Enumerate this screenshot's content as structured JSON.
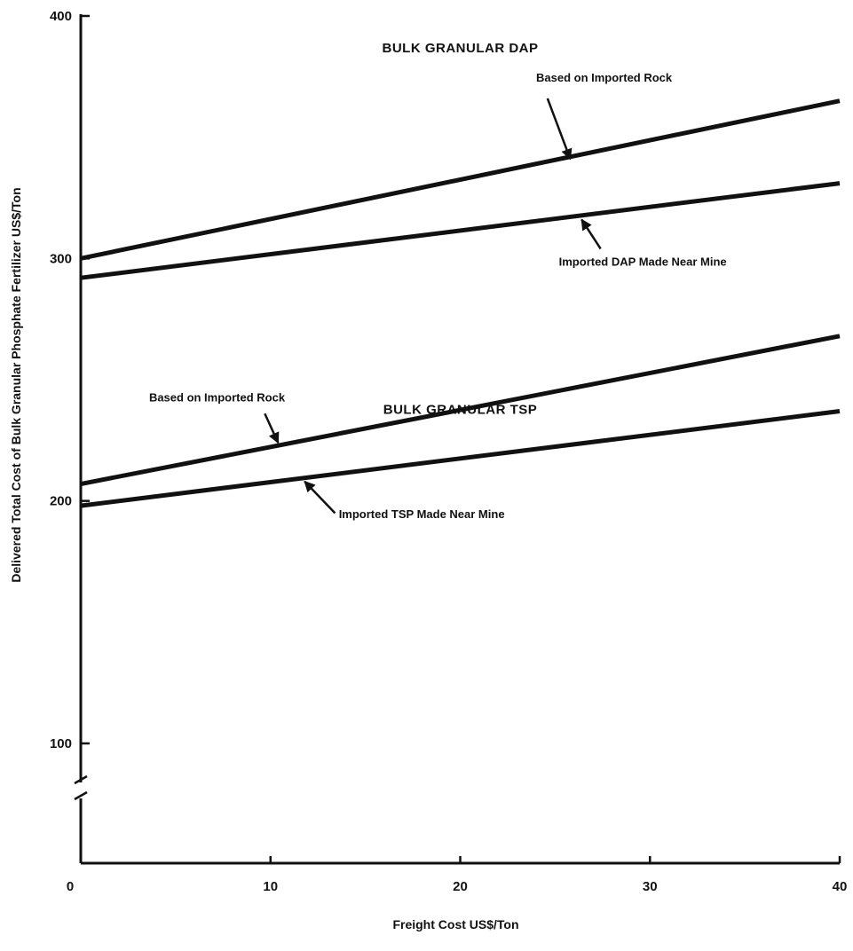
{
  "chart_data": {
    "type": "line",
    "xlabel": "Freight Cost US$/Ton",
    "ylabel": "Delivered Total Cost of Bulk Granular Phosphate Fertilizer US$/Ton",
    "xlim": [
      0,
      40
    ],
    "ylim": [
      100,
      400
    ],
    "x_ticks": [
      "0",
      "10",
      "20",
      "30",
      "40"
    ],
    "y_ticks": [
      "100",
      "200",
      "300",
      "400"
    ],
    "y_axis_break": true,
    "grid": false,
    "line_color": "#111111",
    "sections": [
      {
        "title": "BULK GRANULAR DAP",
        "x": 20,
        "y": 385
      },
      {
        "title": "BULK GRANULAR TSP",
        "x": 20,
        "y": 236
      }
    ],
    "series": [
      {
        "name": "Based on Imported Rock",
        "group": "DAP",
        "x": [
          0,
          40
        ],
        "y": [
          300,
          365
        ]
      },
      {
        "name": "Imported DAP Made Near Mine",
        "group": "DAP",
        "x": [
          0,
          40
        ],
        "y": [
          292,
          331
        ]
      },
      {
        "name": "Based on Imported Rock",
        "group": "TSP",
        "x": [
          0,
          40
        ],
        "y": [
          207,
          268
        ]
      },
      {
        "name": "Imported TSP Made Near Mine",
        "group": "TSP",
        "x": [
          0,
          40
        ],
        "y": [
          198,
          237
        ]
      }
    ],
    "annotations": [
      {
        "text": "Based on Imported Rock",
        "series": 0,
        "label_x": 24,
        "label_y": 373,
        "arrow_from": [
          24.6,
          366
        ],
        "arrow_to": [
          25.8,
          341
        ]
      },
      {
        "text": "Imported DAP Made Near Mine",
        "series": 1,
        "label_x": 25.2,
        "label_y": 297,
        "arrow_from": [
          27.4,
          304
        ],
        "arrow_to": [
          26.4,
          316
        ]
      },
      {
        "text": "Based on Imported Rock",
        "series": 2,
        "label_x": 3.6,
        "label_y": 241,
        "arrow_from": [
          9.7,
          236
        ],
        "arrow_to": [
          10.4,
          224
        ]
      },
      {
        "text": "Imported TSP Made Near Mine",
        "series": 3,
        "label_x": 13.6,
        "label_y": 193,
        "arrow_from": [
          13.4,
          195
        ],
        "arrow_to": [
          11.8,
          208
        ]
      }
    ]
  }
}
